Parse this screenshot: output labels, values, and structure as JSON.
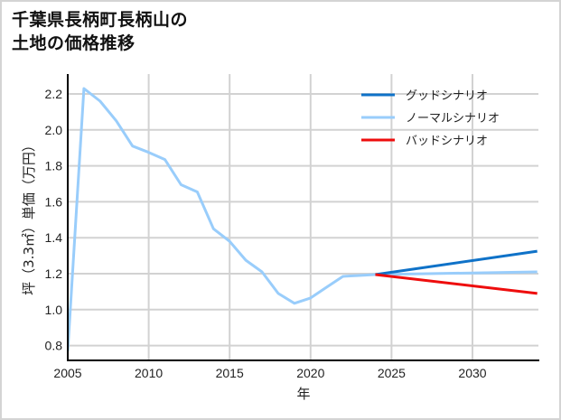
{
  "title": {
    "line1": "千葉県長柄町長柄山の",
    "line2": "土地の価格推移"
  },
  "colors": {
    "good": "#0f72c8",
    "normal": "#99cdfb",
    "bad": "#ee0d0d",
    "grid": "#d2d2d2",
    "axis": "#000000",
    "frame": "#d4d4d4"
  },
  "legend": [
    {
      "label": "グッドシナリオ",
      "color": "#0f72c8"
    },
    {
      "label": "ノーマルシナリオ",
      "color": "#99cdfb"
    },
    {
      "label": "バッドシナリオ",
      "color": "#ee0d0d"
    }
  ],
  "axes": {
    "xlabel": "年",
    "ylabel": "坪（3.3㎡）単価（万円）",
    "xticks": [
      "2005",
      "2010",
      "2015",
      "2020",
      "2025",
      "2030"
    ],
    "yticks": [
      "0.8",
      "1.0",
      "1.2",
      "1.4",
      "1.6",
      "1.8",
      "2.0",
      "2.2"
    ]
  },
  "chart_data": {
    "type": "line",
    "title": "千葉県長柄町長柄山の土地の価格推移",
    "xlabel": "年",
    "ylabel": "坪（3.3㎡）単価（万円）",
    "xlim": [
      2005,
      2034
    ],
    "ylim": [
      0.72,
      2.31
    ],
    "grid": true,
    "legend_position": "upper right",
    "series": [
      {
        "name": "ノーマルシナリオ",
        "color": "#99cdfb",
        "x": [
          2005,
          2006,
          2007,
          2008,
          2009,
          2010,
          2011,
          2012,
          2013,
          2014,
          2015,
          2016,
          2017,
          2018,
          2019,
          2020,
          2021,
          2022,
          2023,
          2024,
          2034
        ],
        "y": [
          0.77,
          2.23,
          2.16,
          2.05,
          1.91,
          1.875,
          1.835,
          1.695,
          1.655,
          1.45,
          1.38,
          1.275,
          1.21,
          1.09,
          1.035,
          1.065,
          1.125,
          1.185,
          1.19,
          1.195,
          1.21
        ]
      },
      {
        "name": "グッドシナリオ",
        "color": "#0f72c8",
        "x": [
          2024,
          2034
        ],
        "y": [
          1.195,
          1.325
        ]
      },
      {
        "name": "バッドシナリオ",
        "color": "#ee0d0d",
        "x": [
          2024,
          2034
        ],
        "y": [
          1.195,
          1.09
        ]
      }
    ]
  }
}
